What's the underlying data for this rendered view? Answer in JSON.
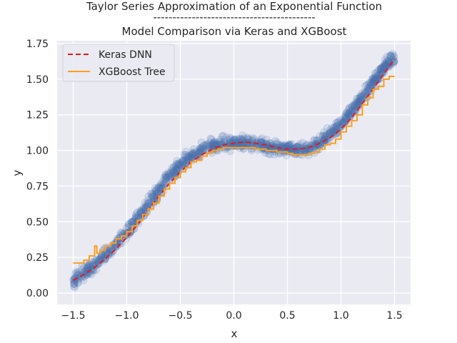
{
  "chart_data": {
    "type": "scatter",
    "title_lines": [
      "Taylor Series Approximation of an Exponential Function",
      "------------------------------------------",
      "Model Comparison via Keras and XGBoost"
    ],
    "xlabel": "x",
    "ylabel": "y",
    "xlim": [
      -1.65,
      1.65
    ],
    "ylim": [
      -0.08,
      1.77
    ],
    "x_ticks": [
      -1.5,
      -1.0,
      -0.5,
      0.0,
      0.5,
      1.0,
      1.5
    ],
    "x_tick_labels": [
      "−1.5",
      "−1.0",
      "−0.5",
      "0.0",
      "0.5",
      "1.0",
      "1.5"
    ],
    "y_ticks": [
      0.0,
      0.25,
      0.5,
      0.75,
      1.0,
      1.25,
      1.5,
      1.75
    ],
    "y_tick_labels": [
      "0.00",
      "0.25",
      "0.50",
      "0.75",
      "1.00",
      "1.25",
      "1.50",
      "1.75"
    ],
    "grid": true,
    "legend_position": "top-left",
    "scatter": {
      "name": "",
      "color": "#4c72b0",
      "x": [
        -1.5,
        -1.45,
        -1.4,
        -1.35,
        -1.3,
        -1.25,
        -1.2,
        -1.15,
        -1.1,
        -1.05,
        -1.0,
        -0.95,
        -0.9,
        -0.85,
        -0.8,
        -0.75,
        -0.7,
        -0.65,
        -0.6,
        -0.55,
        -0.5,
        -0.45,
        -0.4,
        -0.35,
        -0.3,
        -0.25,
        -0.2,
        -0.15,
        -0.1,
        -0.05,
        0.0,
        0.05,
        0.1,
        0.15,
        0.2,
        0.25,
        0.3,
        0.35,
        0.4,
        0.45,
        0.5,
        0.55,
        0.6,
        0.65,
        0.7,
        0.75,
        0.8,
        0.85,
        0.9,
        0.95,
        1.0,
        1.05,
        1.1,
        1.15,
        1.2,
        1.25,
        1.3,
        1.35,
        1.4,
        1.45,
        1.5
      ],
      "y": [
        0.08,
        0.11,
        0.14,
        0.17,
        0.2,
        0.23,
        0.27,
        0.3,
        0.34,
        0.38,
        0.42,
        0.47,
        0.52,
        0.57,
        0.62,
        0.67,
        0.72,
        0.77,
        0.82,
        0.86,
        0.9,
        0.93,
        0.96,
        0.98,
        1.0,
        1.02,
        1.03,
        1.04,
        1.05,
        1.05,
        1.05,
        1.05,
        1.05,
        1.05,
        1.04,
        1.04,
        1.03,
        1.02,
        1.02,
        1.01,
        1.01,
        1.01,
        1.0,
        1.01,
        1.02,
        1.04,
        1.06,
        1.09,
        1.12,
        1.15,
        1.19,
        1.24,
        1.28,
        1.33,
        1.38,
        1.43,
        1.48,
        1.53,
        1.58,
        1.62,
        1.65
      ],
      "spread": 0.055,
      "opacity": 0.15
    },
    "series": [
      {
        "name": "Keras DNN",
        "color": "#e41a1c",
        "style": "dashed",
        "x": [
          -1.5,
          -1.4,
          -1.3,
          -1.2,
          -1.1,
          -1.0,
          -0.9,
          -0.8,
          -0.7,
          -0.6,
          -0.5,
          -0.4,
          -0.3,
          -0.2,
          -0.1,
          0.0,
          0.1,
          0.2,
          0.3,
          0.4,
          0.5,
          0.6,
          0.7,
          0.8,
          0.9,
          1.0,
          1.1,
          1.2,
          1.3,
          1.4,
          1.5
        ],
        "values": [
          0.09,
          0.13,
          0.18,
          0.24,
          0.31,
          0.39,
          0.48,
          0.58,
          0.68,
          0.77,
          0.85,
          0.92,
          0.97,
          1.01,
          1.04,
          1.05,
          1.06,
          1.05,
          1.04,
          1.02,
          1.01,
          1.01,
          1.02,
          1.05,
          1.09,
          1.15,
          1.23,
          1.33,
          1.43,
          1.54,
          1.64
        ]
      },
      {
        "name": "XGBoost Tree",
        "color": "#ff9f1c",
        "style": "step",
        "x": [
          -1.5,
          -1.45,
          -1.4,
          -1.35,
          -1.3,
          -1.28,
          -1.25,
          -1.2,
          -1.15,
          -1.1,
          -1.05,
          -1.0,
          -0.95,
          -0.9,
          -0.85,
          -0.8,
          -0.75,
          -0.7,
          -0.65,
          -0.6,
          -0.55,
          -0.5,
          -0.45,
          -0.4,
          -0.35,
          -0.3,
          -0.25,
          -0.2,
          -0.15,
          -0.1,
          0.0,
          0.1,
          0.2,
          0.3,
          0.4,
          0.5,
          0.55,
          0.6,
          0.65,
          0.7,
          0.75,
          0.8,
          0.85,
          0.9,
          0.95,
          1.0,
          1.05,
          1.1,
          1.15,
          1.2,
          1.25,
          1.3,
          1.35,
          1.4,
          1.45,
          1.5
        ],
        "values": [
          0.21,
          0.21,
          0.23,
          0.26,
          0.33,
          0.28,
          0.3,
          0.33,
          0.35,
          0.38,
          0.4,
          0.43,
          0.47,
          0.51,
          0.55,
          0.59,
          0.63,
          0.68,
          0.73,
          0.77,
          0.81,
          0.85,
          0.88,
          0.92,
          0.93,
          0.96,
          0.98,
          1.0,
          1.01,
          1.02,
          1.02,
          1.02,
          1.01,
          1.0,
          0.99,
          0.98,
          0.97,
          0.97,
          0.97,
          0.98,
          0.99,
          1.01,
          1.04,
          1.05,
          1.08,
          1.13,
          1.17,
          1.21,
          1.25,
          1.32,
          1.37,
          1.43,
          1.45,
          1.5,
          1.52,
          1.52
        ]
      }
    ]
  }
}
